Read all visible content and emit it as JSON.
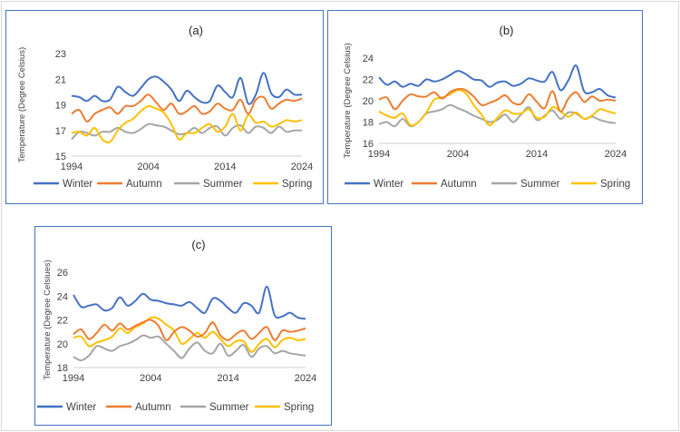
{
  "chart_data": [
    {
      "type": "line",
      "title": "(a)",
      "xlabel": "",
      "ylabel": "Temperature (Degree Celsius)",
      "x_ticks": [
        "1994",
        "2004",
        "2014",
        "2024"
      ],
      "y_ticks": [
        "15",
        "17",
        "19",
        "21",
        "23"
      ],
      "ylim": [
        15,
        23
      ],
      "xlim": [
        1994,
        2024
      ],
      "legend_position": "bottom",
      "x": [
        1994,
        1995,
        1996,
        1997,
        1998,
        1999,
        2000,
        2001,
        2002,
        2003,
        2004,
        2005,
        2006,
        2007,
        2008,
        2009,
        2010,
        2011,
        2012,
        2013,
        2014,
        2015,
        2016,
        2017,
        2018,
        2019,
        2020,
        2021,
        2022,
        2023,
        2024
      ],
      "series": [
        {
          "name": "Winter",
          "color": "#4472c4",
          "values": [
            19.7,
            19.6,
            19.3,
            19.7,
            19.3,
            19.4,
            20.4,
            20.0,
            19.7,
            20.3,
            21.0,
            21.2,
            20.8,
            20.2,
            19.3,
            20.1,
            19.6,
            19.2,
            19.3,
            20.5,
            20.0,
            19.6,
            21.1,
            19.1,
            19.8,
            21.5,
            19.9,
            19.6,
            20.2,
            19.8,
            19.8
          ]
        },
        {
          "name": "Autumn",
          "color": "#ed7d31",
          "values": [
            18.3,
            18.6,
            17.7,
            18.3,
            18.6,
            18.8,
            18.3,
            18.9,
            18.9,
            19.3,
            19.8,
            19.2,
            18.6,
            19.1,
            18.3,
            18.5,
            18.9,
            18.3,
            18.5,
            19.1,
            18.7,
            18.6,
            19.4,
            18.3,
            19.4,
            19.6,
            18.7,
            19.1,
            19.4,
            19.3,
            19.5
          ]
        },
        {
          "name": "Summer",
          "color": "#a5a5a5",
          "values": [
            16.3,
            16.9,
            16.8,
            16.6,
            16.9,
            16.9,
            17.2,
            16.9,
            16.8,
            17.1,
            17.5,
            17.4,
            17.3,
            17.0,
            16.7,
            16.8,
            17.2,
            16.8,
            17.2,
            17.3,
            16.6,
            17.2,
            17.4,
            16.8,
            17.3,
            17.2,
            16.8,
            17.3,
            16.9,
            17.0,
            17.0
          ]
        },
        {
          "name": "Spring",
          "color": "#ffc000",
          "values": [
            16.8,
            16.9,
            16.6,
            17.2,
            16.3,
            16.1,
            17.0,
            17.6,
            17.9,
            18.5,
            18.9,
            18.7,
            18.4,
            17.5,
            16.3,
            16.8,
            16.8,
            17.2,
            17.5,
            16.9,
            17.3,
            18.3,
            17.0,
            18.2,
            17.6,
            17.7,
            17.3,
            17.5,
            17.8,
            17.7,
            17.8
          ]
        }
      ]
    },
    {
      "type": "line",
      "title": "(b)",
      "xlabel": "",
      "ylabel": "Temperature (Degree Celsius)",
      "x_ticks": [
        "1994",
        "2004",
        "2014",
        "2024"
      ],
      "y_ticks": [
        "16",
        "18",
        "20",
        "22",
        "24"
      ],
      "ylim": [
        16,
        24
      ],
      "xlim": [
        1994,
        2024
      ],
      "legend_position": "bottom",
      "x": [
        1994,
        1995,
        1996,
        1997,
        1998,
        1999,
        2000,
        2001,
        2002,
        2003,
        2004,
        2005,
        2006,
        2007,
        2008,
        2009,
        2010,
        2011,
        2012,
        2013,
        2014,
        2015,
        2016,
        2017,
        2018,
        2019,
        2020,
        2021,
        2022,
        2023,
        2024
      ],
      "series": [
        {
          "name": "Winter",
          "color": "#4472c4",
          "values": [
            22.2,
            21.5,
            21.8,
            21.3,
            21.6,
            21.4,
            22.0,
            21.8,
            22.0,
            22.4,
            22.8,
            22.5,
            22.0,
            21.9,
            21.3,
            21.7,
            21.8,
            21.4,
            21.6,
            22.1,
            21.9,
            21.8,
            22.7,
            21.0,
            21.9,
            23.3,
            20.9,
            20.8,
            21.1,
            20.5,
            20.3
          ]
        },
        {
          "name": "Autumn",
          "color": "#ed7d31",
          "values": [
            20.1,
            20.3,
            19.2,
            20.0,
            20.6,
            20.4,
            20.4,
            20.8,
            20.2,
            20.8,
            21.1,
            21.0,
            20.4,
            19.6,
            19.8,
            20.1,
            20.5,
            19.8,
            19.7,
            20.6,
            19.9,
            19.3,
            20.9,
            19.0,
            20.2,
            20.8,
            19.9,
            20.4,
            20.0,
            20.1,
            20.0
          ]
        },
        {
          "name": "Summer",
          "color": "#a5a5a5",
          "values": [
            17.8,
            18.0,
            17.6,
            18.3,
            17.6,
            18.0,
            18.8,
            19.0,
            19.2,
            19.6,
            19.3,
            19.0,
            18.6,
            18.3,
            18.0,
            18.2,
            18.7,
            18.0,
            18.7,
            19.4,
            18.2,
            18.6,
            19.1,
            18.3,
            18.9,
            18.8,
            18.3,
            18.5,
            18.2,
            18.0,
            17.9
          ]
        },
        {
          "name": "Spring",
          "color": "#ffc000",
          "values": [
            19.0,
            18.6,
            18.4,
            18.8,
            17.7,
            18.0,
            18.9,
            20.1,
            20.3,
            20.6,
            21.0,
            20.7,
            19.6,
            18.7,
            17.7,
            18.4,
            19.1,
            18.8,
            18.8,
            19.2,
            18.4,
            18.5,
            19.4,
            19.0,
            18.5,
            18.9,
            18.3,
            18.6,
            19.2,
            19.0,
            18.8
          ]
        }
      ]
    },
    {
      "type": "line",
      "title": "(c)",
      "xlabel": "",
      "ylabel": "Temperature (Degree Celsiues)",
      "x_ticks": [
        "1994",
        "2004",
        "2014",
        "2024"
      ],
      "y_ticks": [
        "18",
        "20",
        "22",
        "24",
        "26"
      ],
      "ylim": [
        18,
        26
      ],
      "xlim": [
        1994,
        2024
      ],
      "legend_position": "bottom",
      "x": [
        1994,
        1995,
        1996,
        1997,
        1998,
        1999,
        2000,
        2001,
        2002,
        2003,
        2004,
        2005,
        2006,
        2007,
        2008,
        2009,
        2010,
        2011,
        2012,
        2013,
        2014,
        2015,
        2016,
        2017,
        2018,
        2019,
        2020,
        2021,
        2022,
        2023,
        2024
      ],
      "series": [
        {
          "name": "Winter",
          "color": "#4472c4",
          "values": [
            24.1,
            23.1,
            23.2,
            23.3,
            22.8,
            23.0,
            23.9,
            23.2,
            23.6,
            24.2,
            23.7,
            23.6,
            23.4,
            23.3,
            23.2,
            23.5,
            23.0,
            22.6,
            23.8,
            23.6,
            23.0,
            22.6,
            23.4,
            23.2,
            22.6,
            24.8,
            22.4,
            22.3,
            22.6,
            22.2,
            22.1
          ]
        },
        {
          "name": "Autumn",
          "color": "#ed7d31",
          "values": [
            20.8,
            21.2,
            20.4,
            20.9,
            21.6,
            21.1,
            21.7,
            21.2,
            21.5,
            21.8,
            22.0,
            21.5,
            20.3,
            21.0,
            21.4,
            21.1,
            20.6,
            20.9,
            21.8,
            20.7,
            20.3,
            20.8,
            21.1,
            20.4,
            20.9,
            21.4,
            20.3,
            21.1,
            21.0,
            21.1,
            21.3
          ]
        },
        {
          "name": "Summer",
          "color": "#a5a5a5",
          "values": [
            18.9,
            18.6,
            19.0,
            19.8,
            19.6,
            19.4,
            19.8,
            20.0,
            20.3,
            20.7,
            20.5,
            20.6,
            20.0,
            19.4,
            18.8,
            19.6,
            20.1,
            19.4,
            19.2,
            20.0,
            19.0,
            19.4,
            19.9,
            18.9,
            19.6,
            19.8,
            19.2,
            19.4,
            19.2,
            19.1,
            19.0
          ]
        },
        {
          "name": "Spring",
          "color": "#ffc000",
          "values": [
            20.5,
            20.6,
            19.8,
            20.1,
            20.3,
            20.6,
            21.3,
            20.9,
            21.4,
            21.7,
            22.2,
            22.1,
            21.6,
            21.1,
            20.0,
            20.4,
            20.9,
            20.5,
            21.0,
            20.4,
            19.8,
            20.2,
            20.2,
            19.3,
            20.0,
            20.4,
            19.7,
            20.3,
            20.5,
            20.3,
            20.4
          ]
        }
      ]
    }
  ]
}
